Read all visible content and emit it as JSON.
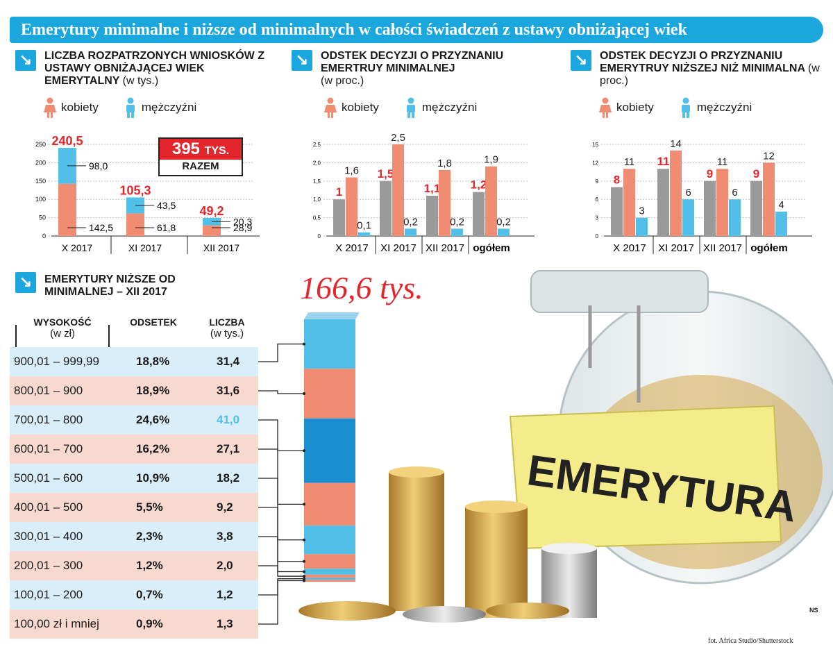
{
  "banner": {
    "title": "Emerytury minimalne i niższe od minimalnych w całości świadczeń z ustawy obniżającej wiek"
  },
  "colors": {
    "accent": "#1ba6de",
    "female": "#f08c72",
    "male": "#52bfe8",
    "total": "#9a9a9a",
    "highlight": "#e3262c"
  },
  "legend": {
    "female": "kobiety",
    "male": "mężczyźni"
  },
  "section1": {
    "title": "Liczba rozpatrzonych wniosków z ustawy obniżającej wiek emerytalny",
    "unit": "(w tys.)",
    "total_value": "395",
    "total_unit": "TYS.",
    "total_label": "RAZEM"
  },
  "section2": {
    "title": "Odstek decyzji o przyznaniu emertruy minimalnej",
    "unit": "(w proc.)"
  },
  "section3": {
    "title": "Odstek decyzji o przyznaniu emerytruy niższej niż minimalna",
    "unit": "(w proc.)"
  },
  "section4": {
    "title": "Emerytury niższe od minimalnej – XII 2017",
    "total": "166,6 tys.",
    "headers": {
      "c1": "Wysokość",
      "c1sub": "(w zł)",
      "c2": "Odsetek",
      "c3": "Liczba",
      "c3sub": "(w tys.)"
    }
  },
  "credits": {
    "ns": "NS",
    "photo": "fot. Africa Studio/Shutterstock"
  },
  "chart_data": [
    {
      "type": "bar",
      "stacked": true,
      "categories": [
        "X 2017",
        "XI 2017",
        "XII 2017"
      ],
      "ylim": [
        0,
        250
      ],
      "yticks": [
        0,
        50,
        100,
        150,
        200,
        250
      ],
      "series": [
        {
          "name": "kobiety",
          "values": [
            142.5,
            61.8,
            28.9
          ],
          "labels": [
            "142,5",
            "61,8",
            "28,9"
          ]
        },
        {
          "name": "mężczyźni",
          "values": [
            98.0,
            43.5,
            20.3
          ],
          "labels": [
            "98,0",
            "43,5",
            "20,3"
          ]
        }
      ],
      "totals": [
        240.5,
        105.3,
        49.2
      ],
      "total_labels": [
        "240,5",
        "105,3",
        "49,2"
      ]
    },
    {
      "type": "bar",
      "categories": [
        "X 2017",
        "XI 2017",
        "XII 2017",
        "ogółem"
      ],
      "ylim": [
        0,
        2.5
      ],
      "yticks": [
        "0",
        "0,5",
        "1,0",
        "1,5",
        "2,0",
        "2,5"
      ],
      "series": [
        {
          "name": "",
          "values": [
            1.0,
            1.5,
            1.1,
            1.2
          ],
          "labels": [
            "1",
            "1,5",
            "1,1",
            "1,2"
          ]
        },
        {
          "name": "kobiety",
          "values": [
            1.6,
            2.5,
            1.8,
            1.9
          ],
          "labels": [
            "1,6",
            "2,5",
            "1,8",
            "1,9"
          ]
        },
        {
          "name": "mężczyźni",
          "values": [
            0.1,
            0.2,
            0.2,
            0.2
          ],
          "labels": [
            "0,1",
            "0,2",
            "0,2",
            "0,2"
          ]
        }
      ]
    },
    {
      "type": "bar",
      "categories": [
        "X 2017",
        "XI 2017",
        "XII 2017",
        "ogółem"
      ],
      "ylim": [
        0,
        15
      ],
      "yticks": [
        "0",
        "3",
        "6",
        "9",
        "12",
        "15"
      ],
      "series": [
        {
          "name": "",
          "values": [
            8,
            11,
            9,
            9
          ],
          "labels": [
            "8",
            "11",
            "9",
            "9"
          ]
        },
        {
          "name": "kobiety",
          "values": [
            11,
            14,
            11,
            12
          ],
          "labels": [
            "11",
            "14",
            "11",
            "12"
          ]
        },
        {
          "name": "mężczyźni",
          "values": [
            3,
            6,
            6,
            4
          ],
          "labels": [
            "3",
            "6",
            "6",
            "4"
          ]
        }
      ]
    },
    {
      "type": "table",
      "rows": [
        {
          "range": "900,01 – 999,99",
          "pct": "18,8%",
          "count": "31,4",
          "value": 31.4
        },
        {
          "range": "800,01 – 900",
          "pct": "18,9%",
          "count": "31,6",
          "value": 31.6
        },
        {
          "range": "700,01 – 800",
          "pct": "24,6%",
          "count": "41,0",
          "value": 41.0
        },
        {
          "range": "600,01 – 700",
          "pct": "16,2%",
          "count": "27,1",
          "value": 27.1
        },
        {
          "range": "500,01 – 600",
          "pct": "10,9%",
          "count": "18,2",
          "value": 18.2
        },
        {
          "range": "400,01 – 500",
          "pct": "5,5%",
          "count": "9,2",
          "value": 9.2
        },
        {
          "range": "300,01 – 400",
          "pct": "2,3%",
          "count": "3,8",
          "value": 3.8
        },
        {
          "range": "200,01 – 300",
          "pct": "1,2%",
          "count": "2,0",
          "value": 2.0
        },
        {
          "range": "100,01 – 200",
          "pct": "0,7%",
          "count": "1,2",
          "value": 1.2
        },
        {
          "range": "100,00 zł i mniej",
          "pct": "0,9%",
          "count": "1,3",
          "value": 1.3
        }
      ]
    }
  ]
}
